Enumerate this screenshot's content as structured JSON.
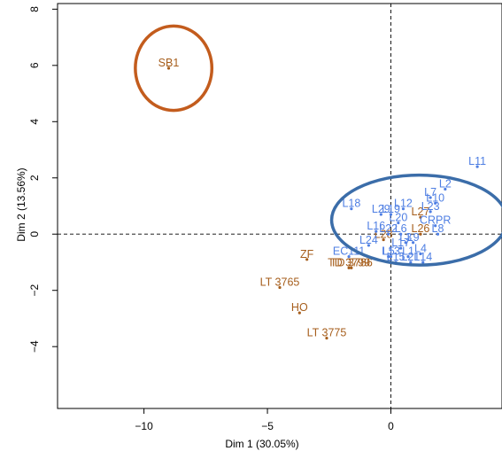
{
  "chart_data": {
    "type": "scatter",
    "xlabel": "Dim 1 (30.05%)",
    "ylabel": "Dim 2 (13.56%)",
    "xlim": [
      -13.5,
      4.5
    ],
    "ylim": [
      -6.2,
      8.2
    ],
    "x_ticks": [
      -10,
      -5,
      0
    ],
    "x_tick_labels": [
      "−10",
      "−5",
      "0"
    ],
    "y_ticks": [
      -4,
      -2,
      0,
      2,
      4,
      6,
      8
    ],
    "y_tick_labels": [
      "−4",
      "−2",
      "0",
      "2",
      "4",
      "6",
      "8"
    ],
    "reference_lines": {
      "x": 0,
      "y": 0,
      "style": "dashed"
    },
    "grid": false,
    "colors": {
      "blue_group": "#4f7fe3",
      "brown_group": "#a65e1c",
      "orange_circle": "#c35c1d",
      "blue_circle": "#3b6da9"
    },
    "series": [
      {
        "color": "#a65e1c",
        "points": [
          {
            "label": "SB1",
            "x": -9.0,
            "y": 5.9
          },
          {
            "label": "ZF",
            "x": -3.4,
            "y": -0.9
          },
          {
            "label": "TD 3799",
            "x": -1.7,
            "y": -1.2
          },
          {
            "label": "TD 3786",
            "x": -1.6,
            "y": -1.2
          },
          {
            "label": "LT 3765",
            "x": -4.5,
            "y": -1.9
          },
          {
            "label": "HO",
            "x": -3.7,
            "y": -2.8
          },
          {
            "label": "LT 3775",
            "x": -2.6,
            "y": -3.7
          },
          {
            "label": "L27",
            "x": 1.2,
            "y": 0.6
          },
          {
            "label": "L26",
            "x": 1.2,
            "y": 0.0
          },
          {
            "label": "L28",
            "x": -0.3,
            "y": -0.2
          }
        ]
      },
      {
        "color": "#4f7fe3",
        "points": [
          {
            "label": "L11",
            "x": 3.5,
            "y": 2.4
          },
          {
            "label": "L2",
            "x": 2.2,
            "y": 1.6
          },
          {
            "label": "L7",
            "x": 1.6,
            "y": 1.3
          },
          {
            "label": "L10",
            "x": 1.8,
            "y": 1.1
          },
          {
            "label": "L12",
            "x": 0.5,
            "y": 0.9
          },
          {
            "label": "L23",
            "x": 1.6,
            "y": 0.8
          },
          {
            "label": "L18",
            "x": -1.6,
            "y": 0.9
          },
          {
            "label": "L29",
            "x": -0.4,
            "y": 0.7
          },
          {
            "label": "L19",
            "x": 0.0,
            "y": 0.7
          },
          {
            "label": "L20",
            "x": 0.3,
            "y": 0.4
          },
          {
            "label": "CRPR",
            "x": 1.8,
            "y": 0.3
          },
          {
            "label": "L8",
            "x": 1.9,
            "y": 0.0
          },
          {
            "label": "L16",
            "x": -0.6,
            "y": 0.1
          },
          {
            "label": "L22",
            "x": -0.1,
            "y": 0.0
          },
          {
            "label": "L6",
            "x": 0.4,
            "y": 0.0
          },
          {
            "label": "L24",
            "x": -0.9,
            "y": -0.4
          },
          {
            "label": "L3",
            "x": 0.6,
            "y": -0.3
          },
          {
            "label": "L9",
            "x": 0.9,
            "y": -0.3
          },
          {
            "label": "EC111",
            "x": -1.7,
            "y": -0.8
          },
          {
            "label": "L4",
            "x": 1.2,
            "y": -0.7
          },
          {
            "label": "L5",
            "x": -0.1,
            "y": -0.8
          },
          {
            "label": "L13",
            "x": 0.0,
            "y": -0.8
          },
          {
            "label": "L1",
            "x": 0.7,
            "y": -0.8
          },
          {
            "label": "L15",
            "x": 0.2,
            "y": -1.0
          },
          {
            "label": "L21",
            "x": 0.8,
            "y": -1.0
          },
          {
            "label": "L14",
            "x": 1.3,
            "y": -1.0
          },
          {
            "label": "L17",
            "x": 0.4,
            "y": -0.5
          }
        ]
      }
    ],
    "highlight_circles": [
      {
        "color": "#c35c1d",
        "center": [
          -8.8,
          5.9
        ],
        "radius": [
          1.55,
          1.5
        ]
      },
      {
        "color": "#3b6da9",
        "center": [
          1.15,
          0.5
        ],
        "radius": [
          3.55,
          1.6
        ]
      }
    ]
  }
}
